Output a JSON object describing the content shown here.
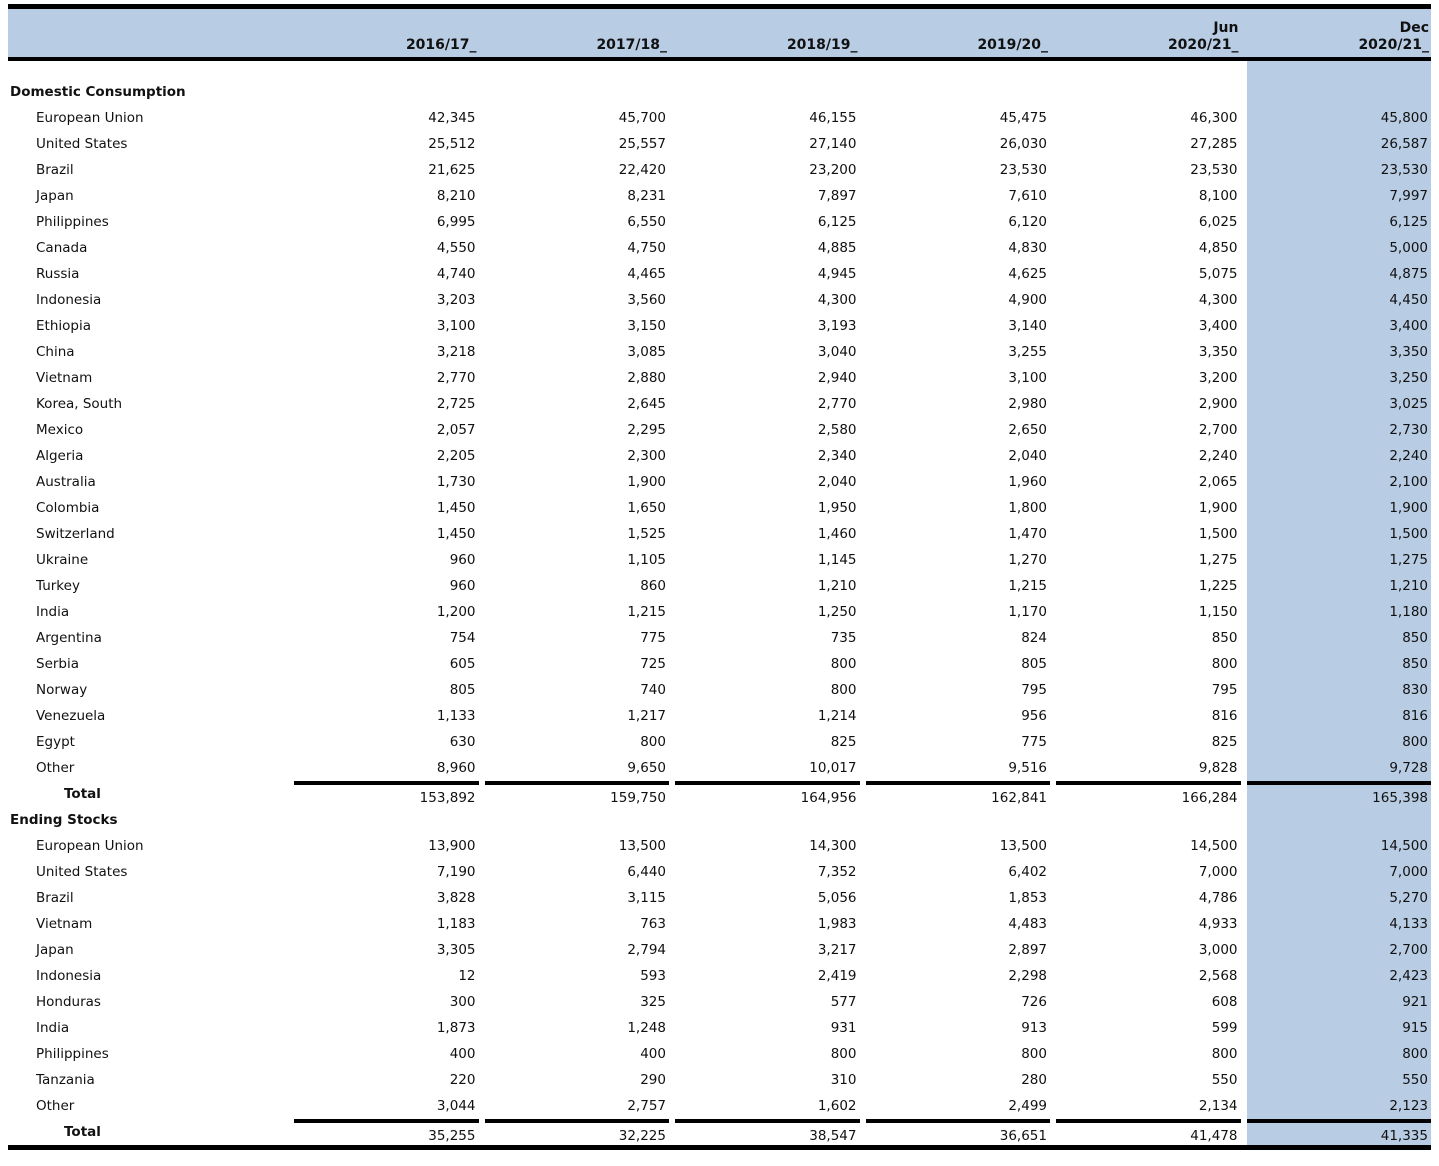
{
  "colors": {
    "highlight": "#b8cce4",
    "rule": "#000000"
  },
  "header": {
    "columns": [
      {
        "top": "",
        "year": "2016/17_"
      },
      {
        "top": "",
        "year": "2017/18_"
      },
      {
        "top": "",
        "year": "2018/19_"
      },
      {
        "top": "",
        "year": "2019/20_"
      },
      {
        "top": "Jun",
        "year": "2020/21_"
      },
      {
        "top": "Dec",
        "year": "2020/21_"
      }
    ]
  },
  "sections": [
    {
      "title": "Domestic Consumption",
      "rows": [
        {
          "label": "European Union",
          "values": [
            "42,345",
            "45,700",
            "46,155",
            "45,475",
            "46,300",
            "45,800"
          ]
        },
        {
          "label": "United States",
          "values": [
            "25,512",
            "25,557",
            "27,140",
            "26,030",
            "27,285",
            "26,587"
          ]
        },
        {
          "label": "Brazil",
          "values": [
            "21,625",
            "22,420",
            "23,200",
            "23,530",
            "23,530",
            "23,530"
          ]
        },
        {
          "label": "Japan",
          "values": [
            "8,210",
            "8,231",
            "7,897",
            "7,610",
            "8,100",
            "7,997"
          ]
        },
        {
          "label": "Philippines",
          "values": [
            "6,995",
            "6,550",
            "6,125",
            "6,120",
            "6,025",
            "6,125"
          ]
        },
        {
          "label": "Canada",
          "values": [
            "4,550",
            "4,750",
            "4,885",
            "4,830",
            "4,850",
            "5,000"
          ]
        },
        {
          "label": "Russia",
          "values": [
            "4,740",
            "4,465",
            "4,945",
            "4,625",
            "5,075",
            "4,875"
          ]
        },
        {
          "label": "Indonesia",
          "values": [
            "3,203",
            "3,560",
            "4,300",
            "4,900",
            "4,300",
            "4,450"
          ]
        },
        {
          "label": "Ethiopia",
          "values": [
            "3,100",
            "3,150",
            "3,193",
            "3,140",
            "3,400",
            "3,400"
          ]
        },
        {
          "label": "China",
          "values": [
            "3,218",
            "3,085",
            "3,040",
            "3,255",
            "3,350",
            "3,350"
          ]
        },
        {
          "label": "Vietnam",
          "values": [
            "2,770",
            "2,880",
            "2,940",
            "3,100",
            "3,200",
            "3,250"
          ]
        },
        {
          "label": "Korea, South",
          "values": [
            "2,725",
            "2,645",
            "2,770",
            "2,980",
            "2,900",
            "3,025"
          ]
        },
        {
          "label": "Mexico",
          "values": [
            "2,057",
            "2,295",
            "2,580",
            "2,650",
            "2,700",
            "2,730"
          ]
        },
        {
          "label": "Algeria",
          "values": [
            "2,205",
            "2,300",
            "2,340",
            "2,040",
            "2,240",
            "2,240"
          ]
        },
        {
          "label": "Australia",
          "values": [
            "1,730",
            "1,900",
            "2,040",
            "1,960",
            "2,065",
            "2,100"
          ]
        },
        {
          "label": "Colombia",
          "values": [
            "1,450",
            "1,650",
            "1,950",
            "1,800",
            "1,900",
            "1,900"
          ]
        },
        {
          "label": "Switzerland",
          "values": [
            "1,450",
            "1,525",
            "1,460",
            "1,470",
            "1,500",
            "1,500"
          ]
        },
        {
          "label": "Ukraine",
          "values": [
            "960",
            "1,105",
            "1,145",
            "1,270",
            "1,275",
            "1,275"
          ]
        },
        {
          "label": "Turkey",
          "values": [
            "960",
            "860",
            "1,210",
            "1,215",
            "1,225",
            "1,210"
          ]
        },
        {
          "label": "India",
          "values": [
            "1,200",
            "1,215",
            "1,250",
            "1,170",
            "1,150",
            "1,180"
          ]
        },
        {
          "label": "Argentina",
          "values": [
            "754",
            "775",
            "735",
            "824",
            "850",
            "850"
          ]
        },
        {
          "label": "Serbia",
          "values": [
            "605",
            "725",
            "800",
            "805",
            "800",
            "850"
          ]
        },
        {
          "label": "Norway",
          "values": [
            "805",
            "740",
            "800",
            "795",
            "795",
            "830"
          ]
        },
        {
          "label": "Venezuela",
          "values": [
            "1,133",
            "1,217",
            "1,214",
            "956",
            "816",
            "816"
          ]
        },
        {
          "label": "Egypt",
          "values": [
            "630",
            "800",
            "825",
            "775",
            "825",
            "800"
          ]
        },
        {
          "label": "Other",
          "values": [
            "8,960",
            "9,650",
            "10,017",
            "9,516",
            "9,828",
            "9,728"
          ]
        }
      ],
      "total": {
        "label": "Total",
        "values": [
          "153,892",
          "159,750",
          "164,956",
          "162,841",
          "166,284",
          "165,398"
        ]
      }
    },
    {
      "title": "Ending Stocks",
      "rows": [
        {
          "label": "European Union",
          "values": [
            "13,900",
            "13,500",
            "14,300",
            "13,500",
            "14,500",
            "14,500"
          ]
        },
        {
          "label": "United States",
          "values": [
            "7,190",
            "6,440",
            "7,352",
            "6,402",
            "7,000",
            "7,000"
          ]
        },
        {
          "label": "Brazil",
          "values": [
            "3,828",
            "3,115",
            "5,056",
            "1,853",
            "4,786",
            "5,270"
          ]
        },
        {
          "label": "Vietnam",
          "values": [
            "1,183",
            "763",
            "1,983",
            "4,483",
            "4,933",
            "4,133"
          ]
        },
        {
          "label": "Japan",
          "values": [
            "3,305",
            "2,794",
            "3,217",
            "2,897",
            "3,000",
            "2,700"
          ]
        },
        {
          "label": "Indonesia",
          "values": [
            "12",
            "593",
            "2,419",
            "2,298",
            "2,568",
            "2,423"
          ]
        },
        {
          "label": "Honduras",
          "values": [
            "300",
            "325",
            "577",
            "726",
            "608",
            "921"
          ]
        },
        {
          "label": "India",
          "values": [
            "1,873",
            "1,248",
            "931",
            "913",
            "599",
            "915"
          ]
        },
        {
          "label": "Philippines",
          "values": [
            "400",
            "400",
            "800",
            "800",
            "800",
            "800"
          ]
        },
        {
          "label": "Tanzania",
          "values": [
            "220",
            "290",
            "310",
            "280",
            "550",
            "550"
          ]
        },
        {
          "label": "Other",
          "values": [
            "3,044",
            "2,757",
            "1,602",
            "2,499",
            "2,134",
            "2,123"
          ]
        }
      ],
      "total": {
        "label": "Total",
        "values": [
          "35,255",
          "32,225",
          "38,547",
          "36,651",
          "41,478",
          "41,335"
        ]
      }
    }
  ]
}
